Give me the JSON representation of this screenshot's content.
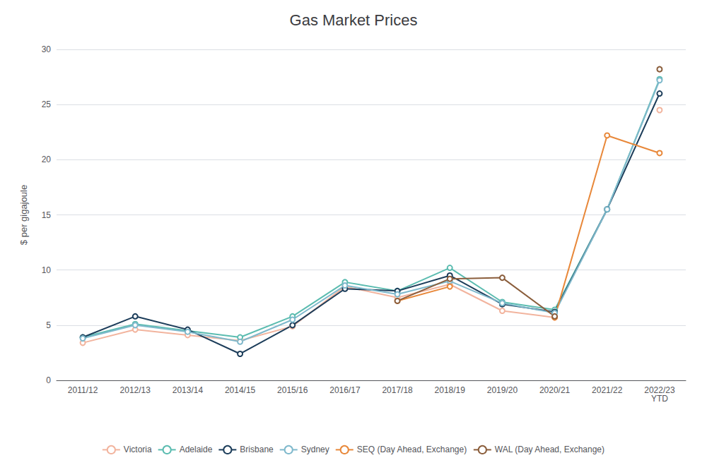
{
  "chart_data": {
    "type": "line",
    "title": "Gas Market Prices",
    "ylabel": "$ per gigajoule",
    "categories": [
      "2011/12",
      "2012/13",
      "2013/14",
      "2014/15",
      "2015/16",
      "2016/17",
      "2017/18",
      "2018/19",
      "2019/20",
      "2020/21",
      "2021/22",
      "2022/23\nYTD"
    ],
    "ylim": [
      0,
      30
    ],
    "yticks": [
      0,
      5,
      10,
      15,
      20,
      25,
      30
    ],
    "grid": true,
    "legend": "bottom",
    "marker": "circle",
    "series": [
      {
        "name": "Victoria",
        "color": "#f2b49e",
        "values": [
          3.4,
          4.6,
          4.1,
          3.6,
          4.9,
          8.5,
          7.5,
          8.7,
          6.3,
          5.7,
          null,
          24.5
        ]
      },
      {
        "name": "Adelaide",
        "color": "#5bbcb0",
        "values": [
          3.9,
          5.1,
          4.5,
          3.9,
          5.8,
          8.9,
          8.1,
          10.2,
          7.1,
          6.4,
          15.5,
          27.3
        ]
      },
      {
        "name": "Brisbane",
        "color": "#1c3d5a",
        "values": [
          3.9,
          5.8,
          4.6,
          2.4,
          5.0,
          8.3,
          8.1,
          9.5,
          6.9,
          6.2,
          15.5,
          26.0
        ]
      },
      {
        "name": "Sydney",
        "color": "#7fb9cc",
        "values": [
          3.8,
          5.0,
          4.4,
          3.5,
          5.5,
          8.6,
          7.8,
          9.0,
          7.0,
          6.1,
          15.5,
          27.2
        ]
      },
      {
        "name": "SEQ (Day Ahead, Exchange)",
        "color": "#e8883a",
        "values": [
          null,
          null,
          null,
          null,
          null,
          null,
          7.2,
          8.5,
          null,
          5.7,
          22.2,
          20.6
        ]
      },
      {
        "name": "WAL (Day Ahead, Exchange)",
        "color": "#8b5e3c",
        "values": [
          null,
          null,
          null,
          null,
          null,
          null,
          7.2,
          9.2,
          9.3,
          5.8,
          null,
          28.2
        ]
      }
    ]
  }
}
